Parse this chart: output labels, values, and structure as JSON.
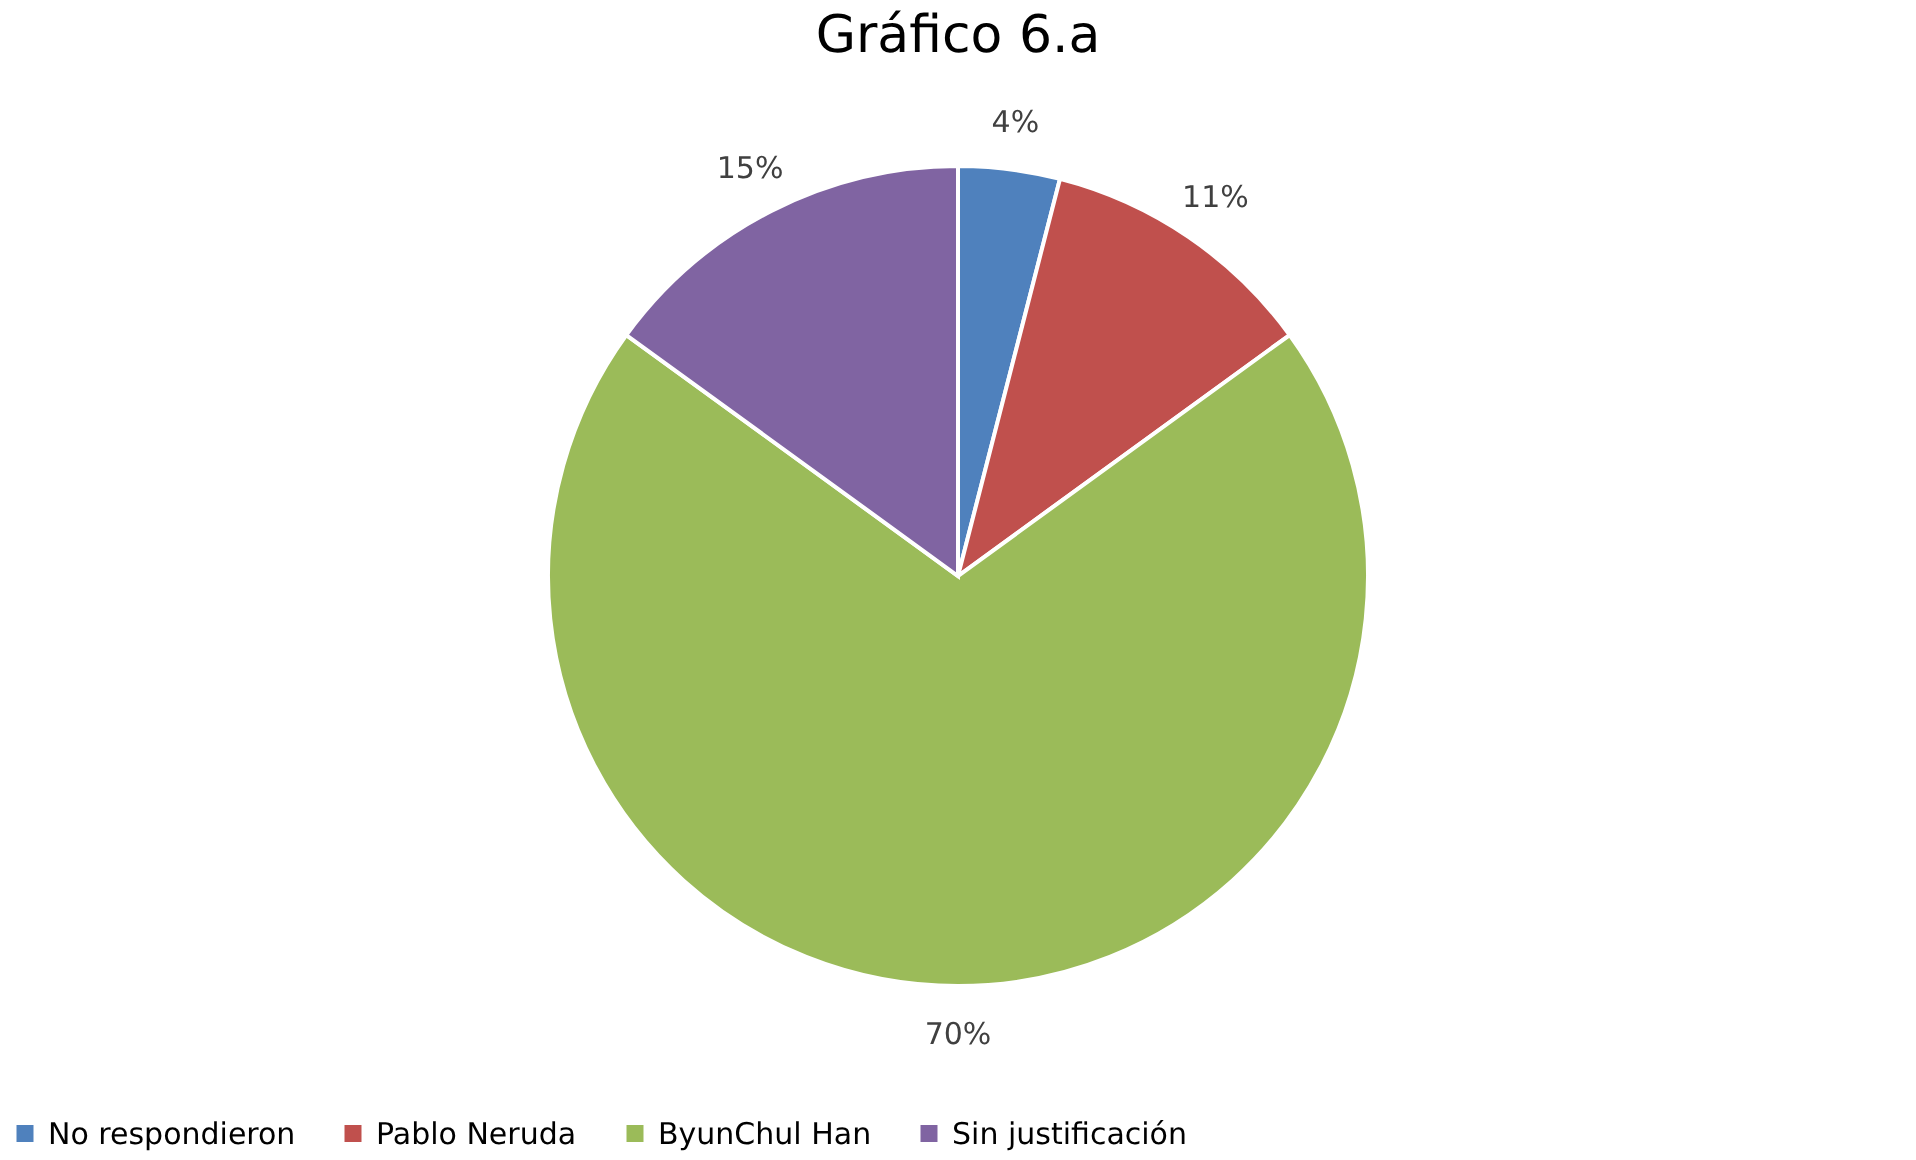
{
  "chart_data": {
    "type": "pie",
    "title": "Gráfico 6.a",
    "categories": [
      "No respondieron",
      "Pablo Neruda",
      "ByunChul Han",
      "Sin justificación"
    ],
    "values": [
      4,
      11,
      70,
      15
    ],
    "colors": [
      "#4f81bd",
      "#c0504d",
      "#9bbb59",
      "#8064a2"
    ],
    "value_labels": [
      "4%",
      "11%",
      "70%",
      "15%"
    ],
    "legend": "bottom"
  }
}
